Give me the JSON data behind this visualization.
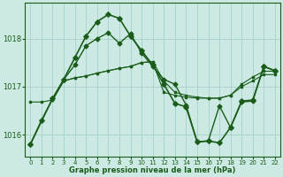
{
  "bg_color": "#cceae3",
  "grid_color": "#aad4cc",
  "line_color": "#1a5c1a",
  "title": "Graphe pression niveau de la mer (hPa)",
  "xlim": [
    -0.5,
    22.5
  ],
  "ylim": [
    1015.55,
    1018.75
  ],
  "yticks": [
    1016,
    1017,
    1018
  ],
  "xticks": [
    0,
    1,
    2,
    3,
    4,
    5,
    6,
    7,
    8,
    9,
    10,
    11,
    12,
    13,
    14,
    15,
    16,
    17,
    18,
    19,
    20,
    21,
    22
  ],
  "line1_x": [
    0,
    1,
    2,
    3,
    4,
    5,
    6,
    7,
    8,
    9,
    10,
    11,
    12,
    13,
    14,
    15,
    16,
    17,
    18,
    19,
    20,
    21,
    22
  ],
  "line1_y": [
    1015.8,
    1016.3,
    1016.75,
    1017.15,
    1017.6,
    1018.05,
    1018.35,
    1018.5,
    1018.42,
    1018.05,
    1017.75,
    1017.45,
    1017.05,
    1016.65,
    1016.58,
    1015.85,
    1015.87,
    1015.83,
    1016.15,
    1016.7,
    1016.72,
    1017.42,
    1017.33
  ],
  "line2_x": [
    0,
    2,
    3,
    4,
    5,
    6,
    7,
    8,
    9,
    10,
    11,
    12,
    13,
    14,
    15,
    16,
    17,
    18,
    19,
    20,
    21,
    22
  ],
  "line2_y": [
    1015.8,
    1016.75,
    1017.15,
    1017.45,
    1017.85,
    1018.0,
    1018.12,
    1017.9,
    1018.1,
    1017.7,
    1017.42,
    1017.15,
    1017.05,
    1016.62,
    1015.85,
    1015.87,
    1016.6,
    1016.15,
    1016.68,
    1016.7,
    1017.42,
    1017.33
  ],
  "line3_x": [
    2,
    3,
    4,
    5,
    6,
    7,
    8,
    9,
    10,
    11,
    12,
    13,
    14,
    15,
    16,
    17,
    18,
    19,
    20,
    21,
    22
  ],
  "line3_y": [
    1016.72,
    1017.12,
    1017.18,
    1017.22,
    1017.28,
    1017.33,
    1017.38,
    1017.42,
    1017.5,
    1017.52,
    1017.12,
    1016.88,
    1016.82,
    1016.78,
    1016.76,
    1016.76,
    1016.82,
    1017.05,
    1017.2,
    1017.32,
    1017.32
  ],
  "line4_x": [
    0,
    1,
    2,
    3,
    4,
    5,
    6,
    7,
    8,
    9,
    10,
    11,
    12,
    13,
    14,
    15,
    16,
    17,
    18,
    19,
    20,
    21,
    22
  ],
  "line4_y": [
    1016.68,
    1016.68,
    1016.72,
    1017.12,
    1017.18,
    1017.22,
    1017.28,
    1017.33,
    1017.38,
    1017.42,
    1017.5,
    1017.52,
    1016.88,
    1016.82,
    1016.78,
    1016.76,
    1016.76,
    1016.76,
    1016.82,
    1017.0,
    1017.12,
    1017.25,
    1017.25
  ]
}
